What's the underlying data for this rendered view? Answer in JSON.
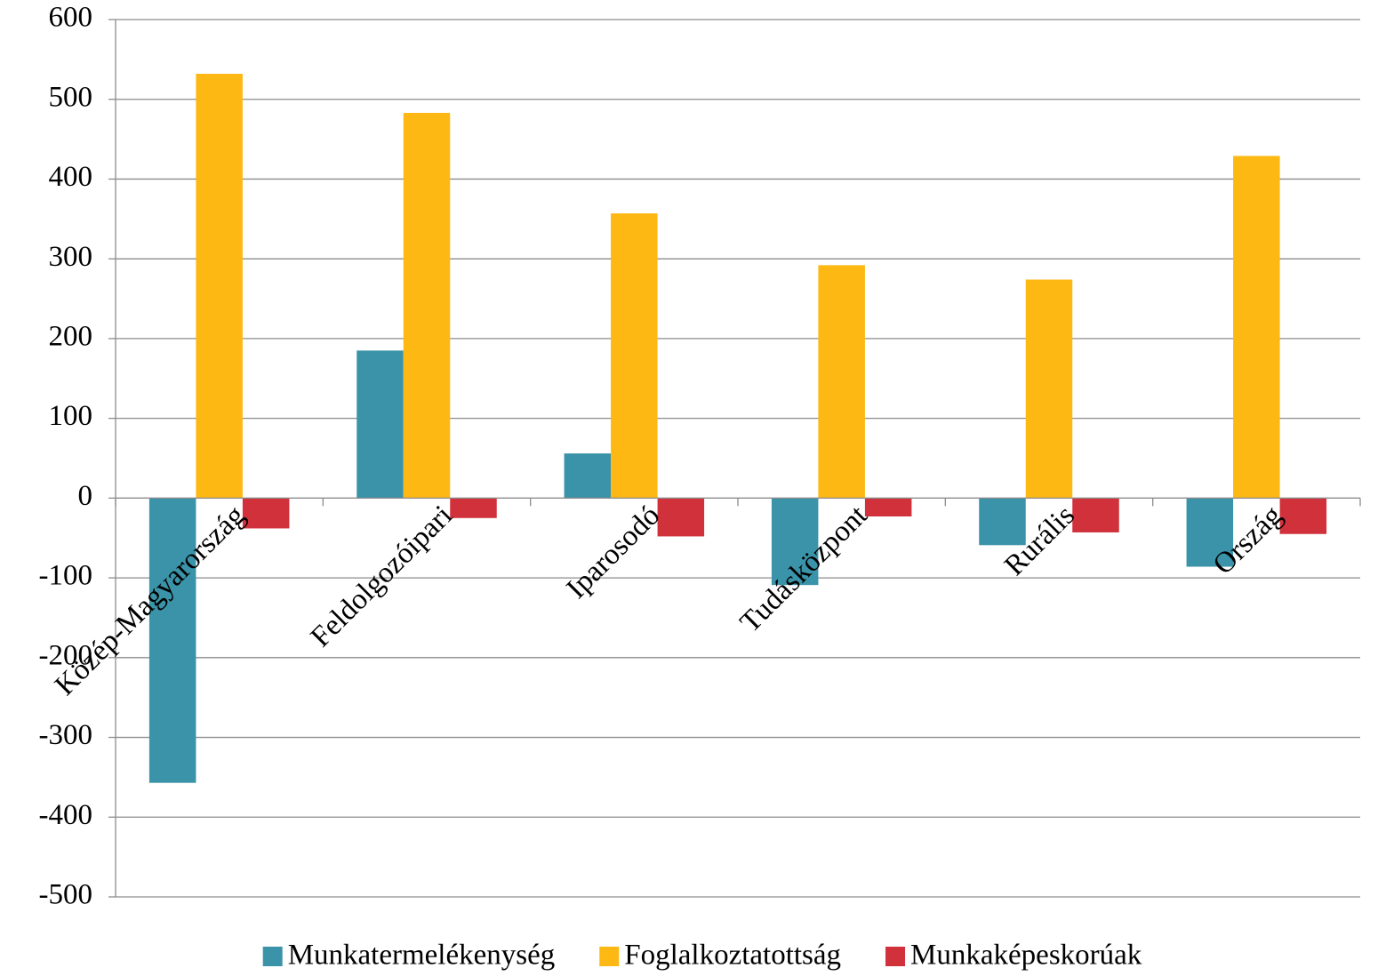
{
  "chart_data": {
    "type": "bar",
    "categories": [
      "Közép-Magyarország",
      "Feldolgozóipari",
      "Iparosodó",
      "Tudásközpont",
      "Rurális",
      "Ország"
    ],
    "series": [
      {
        "name": "Munkatermelékenység",
        "color": "#3a93a8",
        "values": [
          -357,
          185,
          56,
          -109,
          -59,
          -86
        ]
      },
      {
        "name": "Foglalkoztatottság",
        "color": "#fdb813",
        "values": [
          532,
          483,
          357,
          292,
          274,
          429
        ]
      },
      {
        "name": "Munkaképeskorúak",
        "color": "#d0313a",
        "values": [
          -38,
          -25,
          -48,
          -23,
          -43,
          -45
        ]
      }
    ],
    "ylim": [
      -500,
      600
    ],
    "yticks": [
      -500,
      -400,
      -300,
      -200,
      -100,
      0,
      100,
      200,
      300,
      400,
      500,
      600
    ],
    "grid": true,
    "legend": "bottom"
  }
}
